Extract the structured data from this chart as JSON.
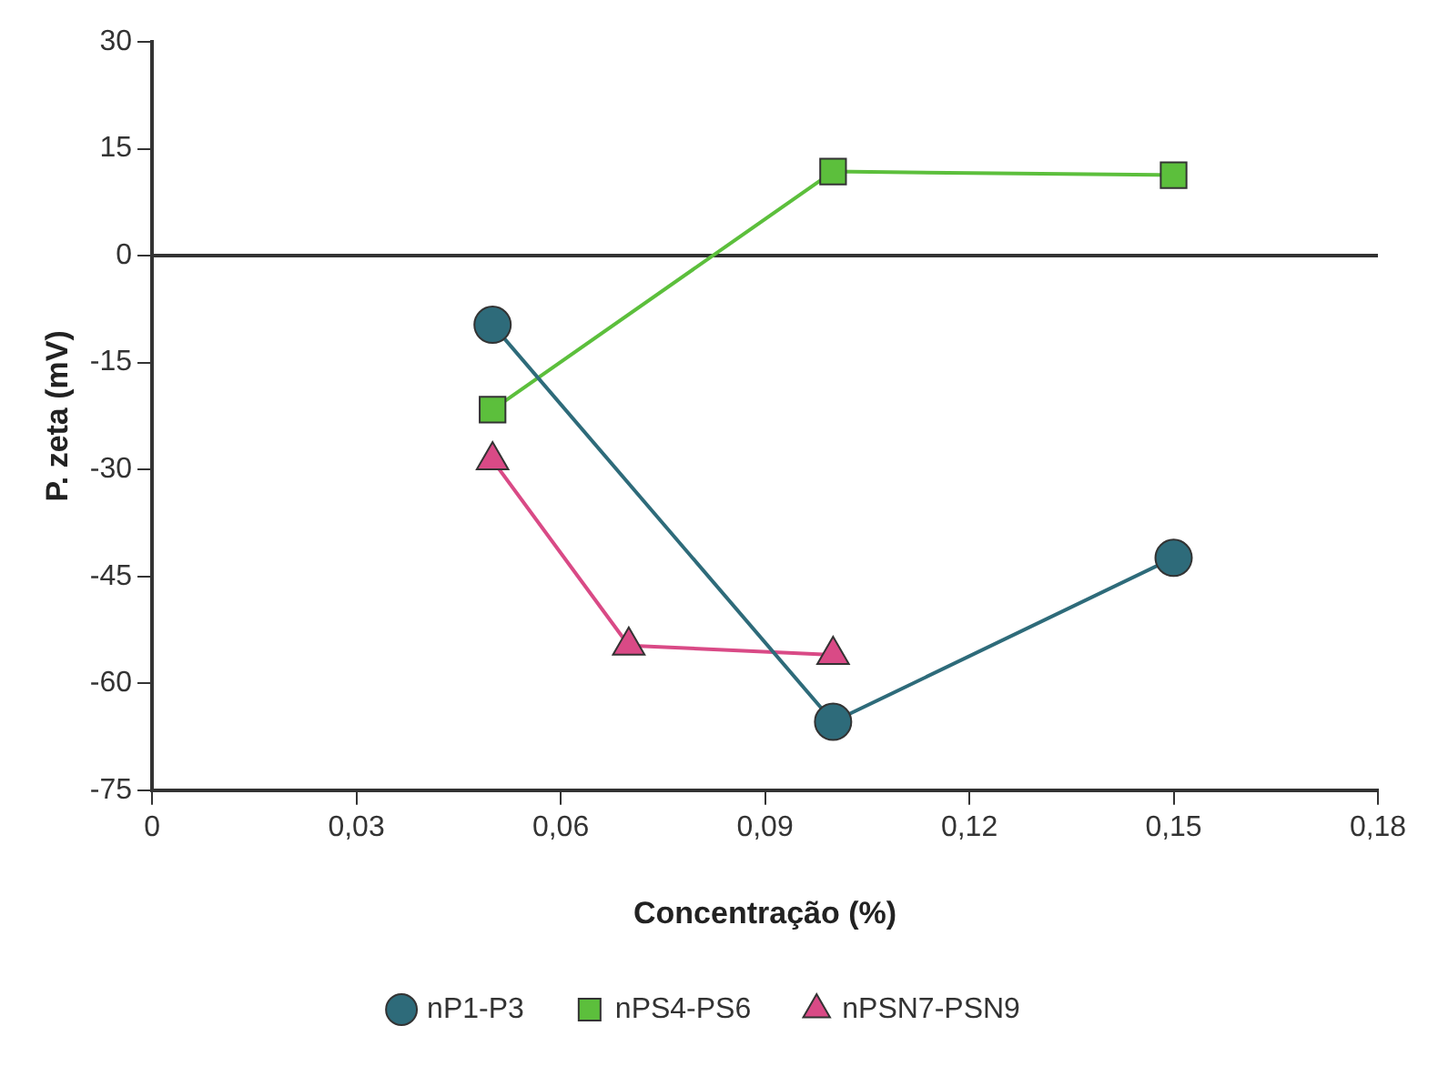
{
  "chart_data": {
    "type": "line",
    "xlabel": "Concentração (%)",
    "ylabel": "P. zeta (mV)",
    "xlim": [
      0,
      0.18
    ],
    "xticks": [
      0,
      {
        "value": 0.03,
        "label": "0,03"
      },
      {
        "value": 0.06,
        "label": "0,06"
      },
      {
        "value": 0.09,
        "label": "0,09"
      },
      {
        "value": 0.12,
        "label": "0,12"
      },
      {
        "value": 0.15,
        "label": "0,15"
      },
      {
        "value": 0.18,
        "label": "0,18"
      }
    ],
    "ylim": [
      -75,
      30
    ],
    "yticks": [
      -75,
      -60,
      -45,
      -30,
      -15,
      0,
      15,
      30
    ],
    "grid": false,
    "legend": "bottom",
    "line_style": "solid",
    "ref_lines": [
      {
        "axis": "y",
        "value": 0,
        "color": "#333333"
      }
    ],
    "series": [
      {
        "name": "nP1-P3",
        "color": "#2e6b7a",
        "marker": "circle",
        "x": [
          0.05,
          0.1,
          0.15
        ],
        "values": [
          -9.7,
          -65.4,
          -42.4
        ]
      },
      {
        "name": "nPS4-PS6",
        "color": "#5cbf3c",
        "marker": "square",
        "x": [
          0.05,
          0.1,
          0.15
        ],
        "values": [
          -21.6,
          11.8,
          11.3
        ]
      },
      {
        "name": "nPSN7-PSN9",
        "color": "#d94a86",
        "marker": "triangle",
        "x": [
          0.05,
          0.07,
          0.1
        ],
        "values": [
          -28.7,
          -54.7,
          -56
        ]
      }
    ]
  }
}
